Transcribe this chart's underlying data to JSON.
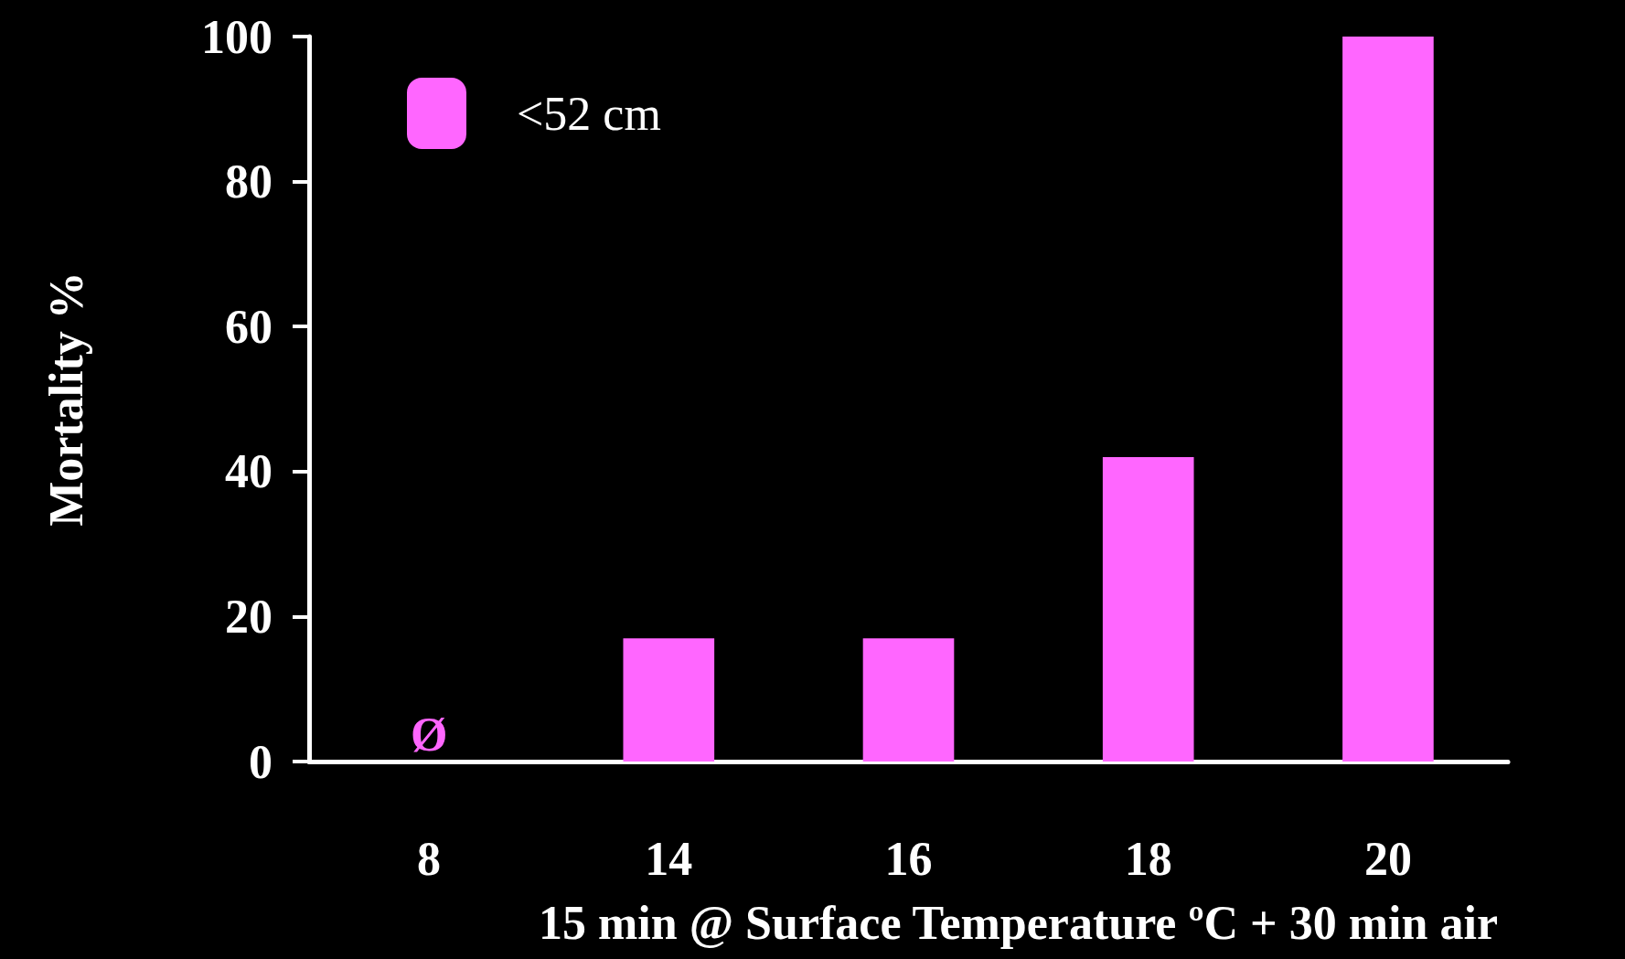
{
  "chart_data": {
    "type": "bar",
    "xlabel": "15 min @ Surface Temperature ºC + 30 min air",
    "ylabel": "Mortality %",
    "categories": [
      "8",
      "14",
      "16",
      "18",
      "20"
    ],
    "series": [
      {
        "name": "<52 cm",
        "color": "#ff66ff",
        "values": [
          0,
          17,
          17,
          42,
          100
        ]
      }
    ],
    "ylim": [
      0,
      100
    ],
    "yticks": [
      0,
      20,
      40,
      60,
      80,
      100
    ],
    "annotations": [
      {
        "text": "Ø",
        "x": "8",
        "y": 0
      }
    ],
    "grid": false,
    "legend": "top left"
  }
}
